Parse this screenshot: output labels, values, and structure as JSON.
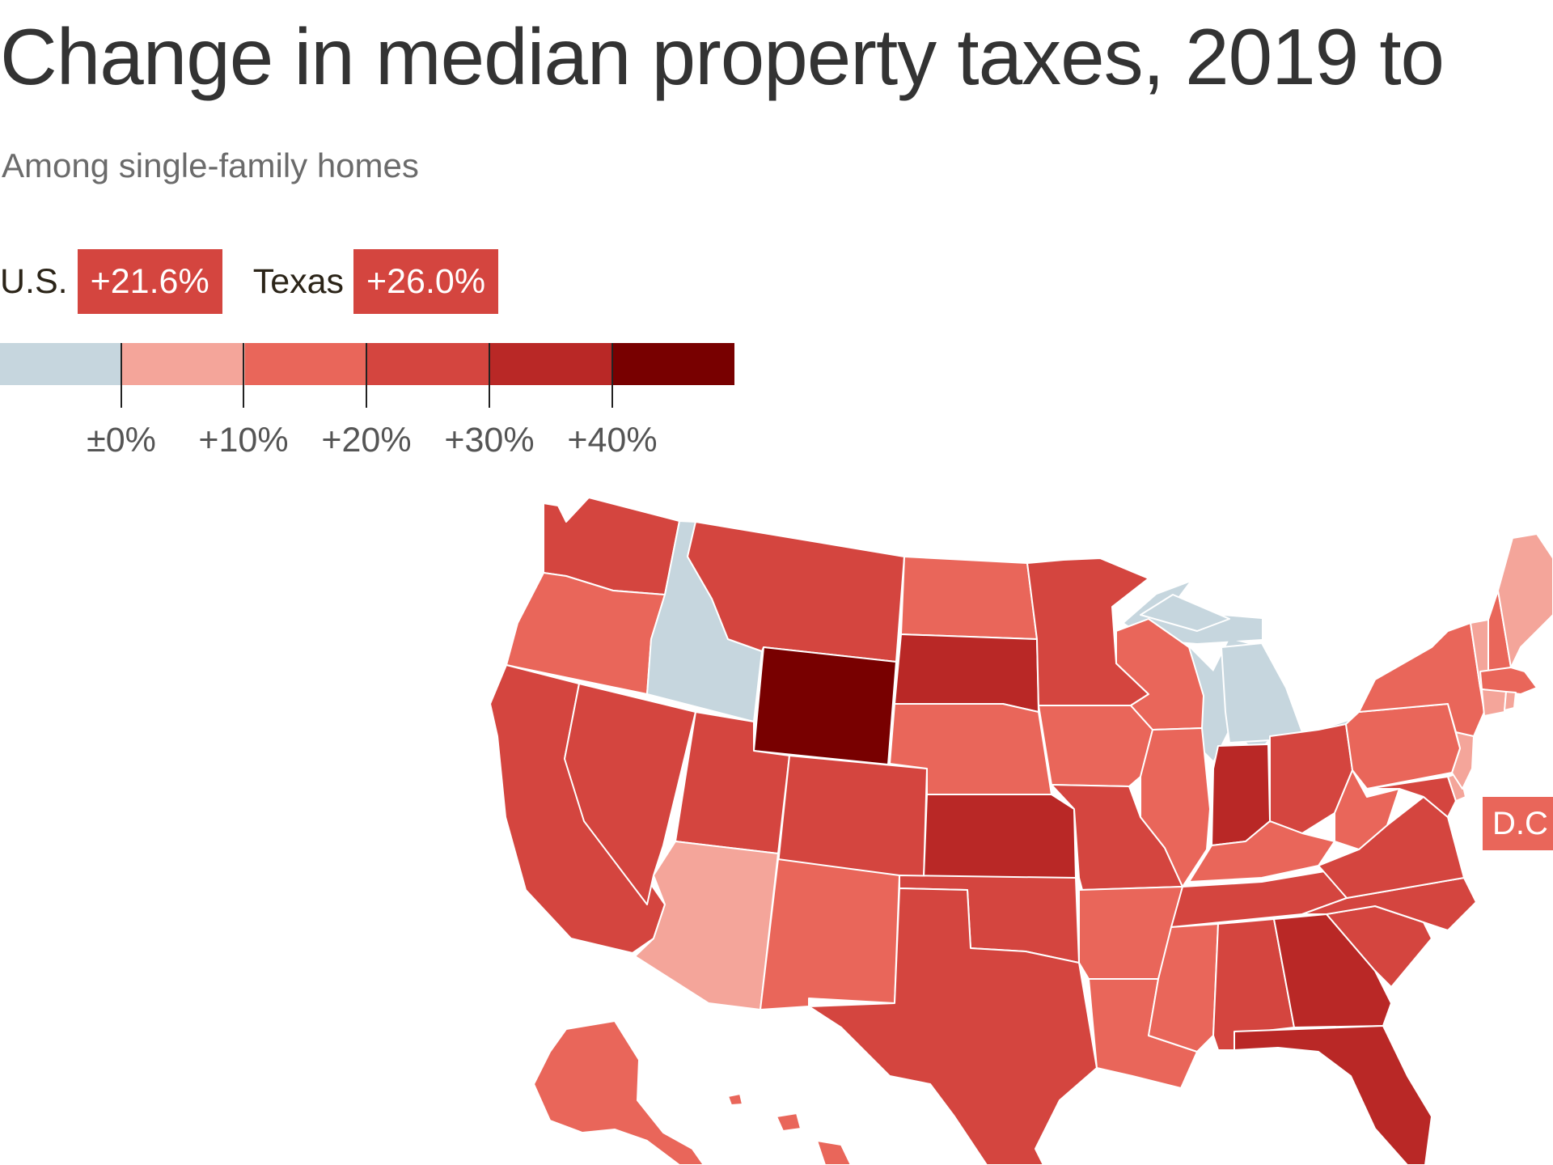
{
  "header": {
    "title": "Change in median property taxes, 2019 to",
    "subtitle": "Among single-family homes"
  },
  "stats": [
    {
      "label": "U.S.",
      "value": "+21.6%",
      "color": "#d4453f"
    },
    {
      "label": "Texas",
      "value": "+26.0%",
      "color": "#d4453f"
    }
  ],
  "legend": {
    "bins": [
      {
        "color": "#c6d6de"
      },
      {
        "color": "#f4a59a"
      },
      {
        "color": "#e9665a"
      },
      {
        "color": "#d4453f"
      },
      {
        "color": "#b92826"
      },
      {
        "color": "#780000"
      }
    ],
    "ticks": [
      "±0%",
      "+10%",
      "+20%",
      "+30%",
      "+40%"
    ]
  },
  "callouts": [
    {
      "label": "D.C",
      "color": "#e9665a"
    }
  ],
  "map": {
    "states": [
      {
        "id": "WA",
        "color": "#d4453f"
      },
      {
        "id": "OR",
        "color": "#e9665a"
      },
      {
        "id": "CA",
        "color": "#d4453f"
      },
      {
        "id": "NV",
        "color": "#d4453f"
      },
      {
        "id": "ID",
        "color": "#c6d6de"
      },
      {
        "id": "MT",
        "color": "#d4453f"
      },
      {
        "id": "WY",
        "color": "#780000"
      },
      {
        "id": "UT",
        "color": "#d4453f"
      },
      {
        "id": "AZ",
        "color": "#f4a59a"
      },
      {
        "id": "CO",
        "color": "#d4453f"
      },
      {
        "id": "NM",
        "color": "#e9665a"
      },
      {
        "id": "ND",
        "color": "#e9665a"
      },
      {
        "id": "SD",
        "color": "#b92826"
      },
      {
        "id": "NE",
        "color": "#e9665a"
      },
      {
        "id": "KS",
        "color": "#b92826"
      },
      {
        "id": "OK",
        "color": "#d4453f"
      },
      {
        "id": "TX",
        "color": "#d4453f"
      },
      {
        "id": "MN",
        "color": "#d4453f"
      },
      {
        "id": "IA",
        "color": "#e9665a"
      },
      {
        "id": "MO",
        "color": "#d4453f"
      },
      {
        "id": "AR",
        "color": "#e9665a"
      },
      {
        "id": "LA",
        "color": "#e9665a"
      },
      {
        "id": "WI",
        "color": "#e9665a"
      },
      {
        "id": "IL",
        "color": "#e9665a"
      },
      {
        "id": "MI",
        "color": "#c6d6de"
      },
      {
        "id": "IN",
        "color": "#b92826"
      },
      {
        "id": "OH",
        "color": "#d4453f"
      },
      {
        "id": "KY",
        "color": "#e9665a"
      },
      {
        "id": "TN",
        "color": "#d4453f"
      },
      {
        "id": "MS",
        "color": "#e9665a"
      },
      {
        "id": "AL",
        "color": "#d4453f"
      },
      {
        "id": "GA",
        "color": "#b92826"
      },
      {
        "id": "FL",
        "color": "#b92826"
      },
      {
        "id": "SC",
        "color": "#d4453f"
      },
      {
        "id": "NC",
        "color": "#d4453f"
      },
      {
        "id": "VA",
        "color": "#d4453f"
      },
      {
        "id": "WV",
        "color": "#e9665a"
      },
      {
        "id": "MD",
        "color": "#d4453f"
      },
      {
        "id": "DE",
        "color": "#f4a59a"
      },
      {
        "id": "NJ",
        "color": "#f4a59a"
      },
      {
        "id": "PA",
        "color": "#e9665a"
      },
      {
        "id": "NY",
        "color": "#e9665a"
      },
      {
        "id": "VT",
        "color": "#f4a59a"
      },
      {
        "id": "NH",
        "color": "#e9665a"
      },
      {
        "id": "ME",
        "color": "#f4a59a"
      },
      {
        "id": "MA",
        "color": "#e9665a"
      },
      {
        "id": "CT",
        "color": "#f4a59a"
      },
      {
        "id": "RI",
        "color": "#f4a59a"
      },
      {
        "id": "AK",
        "color": "#e9665a"
      },
      {
        "id": "HI",
        "color": "#e9665a"
      }
    ]
  }
}
